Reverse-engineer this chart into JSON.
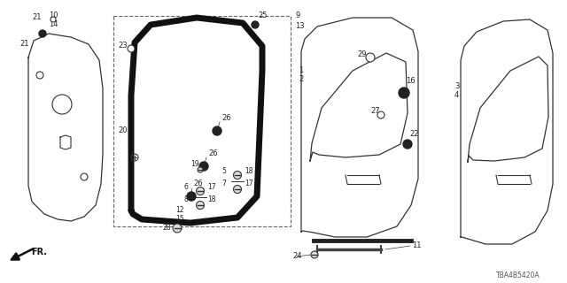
{
  "bg_color": "#ffffff",
  "diagram_code": "TBA4B5420A",
  "line_color": "#333333",
  "fr_label": "FR."
}
